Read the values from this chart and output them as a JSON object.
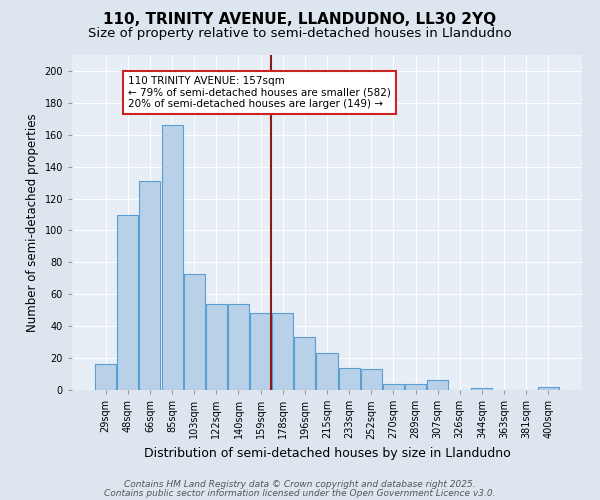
{
  "title": "110, TRINITY AVENUE, LLANDUDNO, LL30 2YQ",
  "subtitle": "Size of property relative to semi-detached houses in Llandudno",
  "xlabel": "Distribution of semi-detached houses by size in Llandudno",
  "ylabel": "Number of semi-detached properties",
  "footer1": "Contains HM Land Registry data © Crown copyright and database right 2025.",
  "footer2": "Contains public sector information licensed under the Open Government Licence v3.0.",
  "bar_labels": [
    "29sqm",
    "48sqm",
    "66sqm",
    "85sqm",
    "103sqm",
    "122sqm",
    "140sqm",
    "159sqm",
    "178sqm",
    "196sqm",
    "215sqm",
    "233sqm",
    "252sqm",
    "270sqm",
    "289sqm",
    "307sqm",
    "326sqm",
    "344sqm",
    "363sqm",
    "381sqm",
    "400sqm"
  ],
  "bar_values": [
    16,
    110,
    131,
    166,
    73,
    54,
    54,
    48,
    48,
    33,
    23,
    14,
    13,
    4,
    4,
    6,
    0,
    1,
    0,
    0,
    2
  ],
  "bar_color": "#b8d0e8",
  "bar_edge_color": "#5a9fd4",
  "highlight_line_index": 7,
  "highlight_line_color": "#8b1a1a",
  "annotation_text": "110 TRINITY AVENUE: 157sqm\n← 79% of semi-detached houses are smaller (582)\n20% of semi-detached houses are larger (149) →",
  "annotation_box_facecolor": "#ffffff",
  "annotation_box_edgecolor": "#cc2222",
  "ylim": [
    0,
    210
  ],
  "yticks": [
    0,
    20,
    40,
    60,
    80,
    100,
    120,
    140,
    160,
    180,
    200
  ],
  "bg_color": "#dde6ef",
  "plot_bg_color": "#e8eef5",
  "grid_color": "#ffffff",
  "title_fontsize": 11,
  "subtitle_fontsize": 9.5,
  "tick_fontsize": 7,
  "ylabel_fontsize": 8.5,
  "xlabel_fontsize": 9,
  "footer_fontsize": 6.5,
  "ann_fontsize": 7.5
}
